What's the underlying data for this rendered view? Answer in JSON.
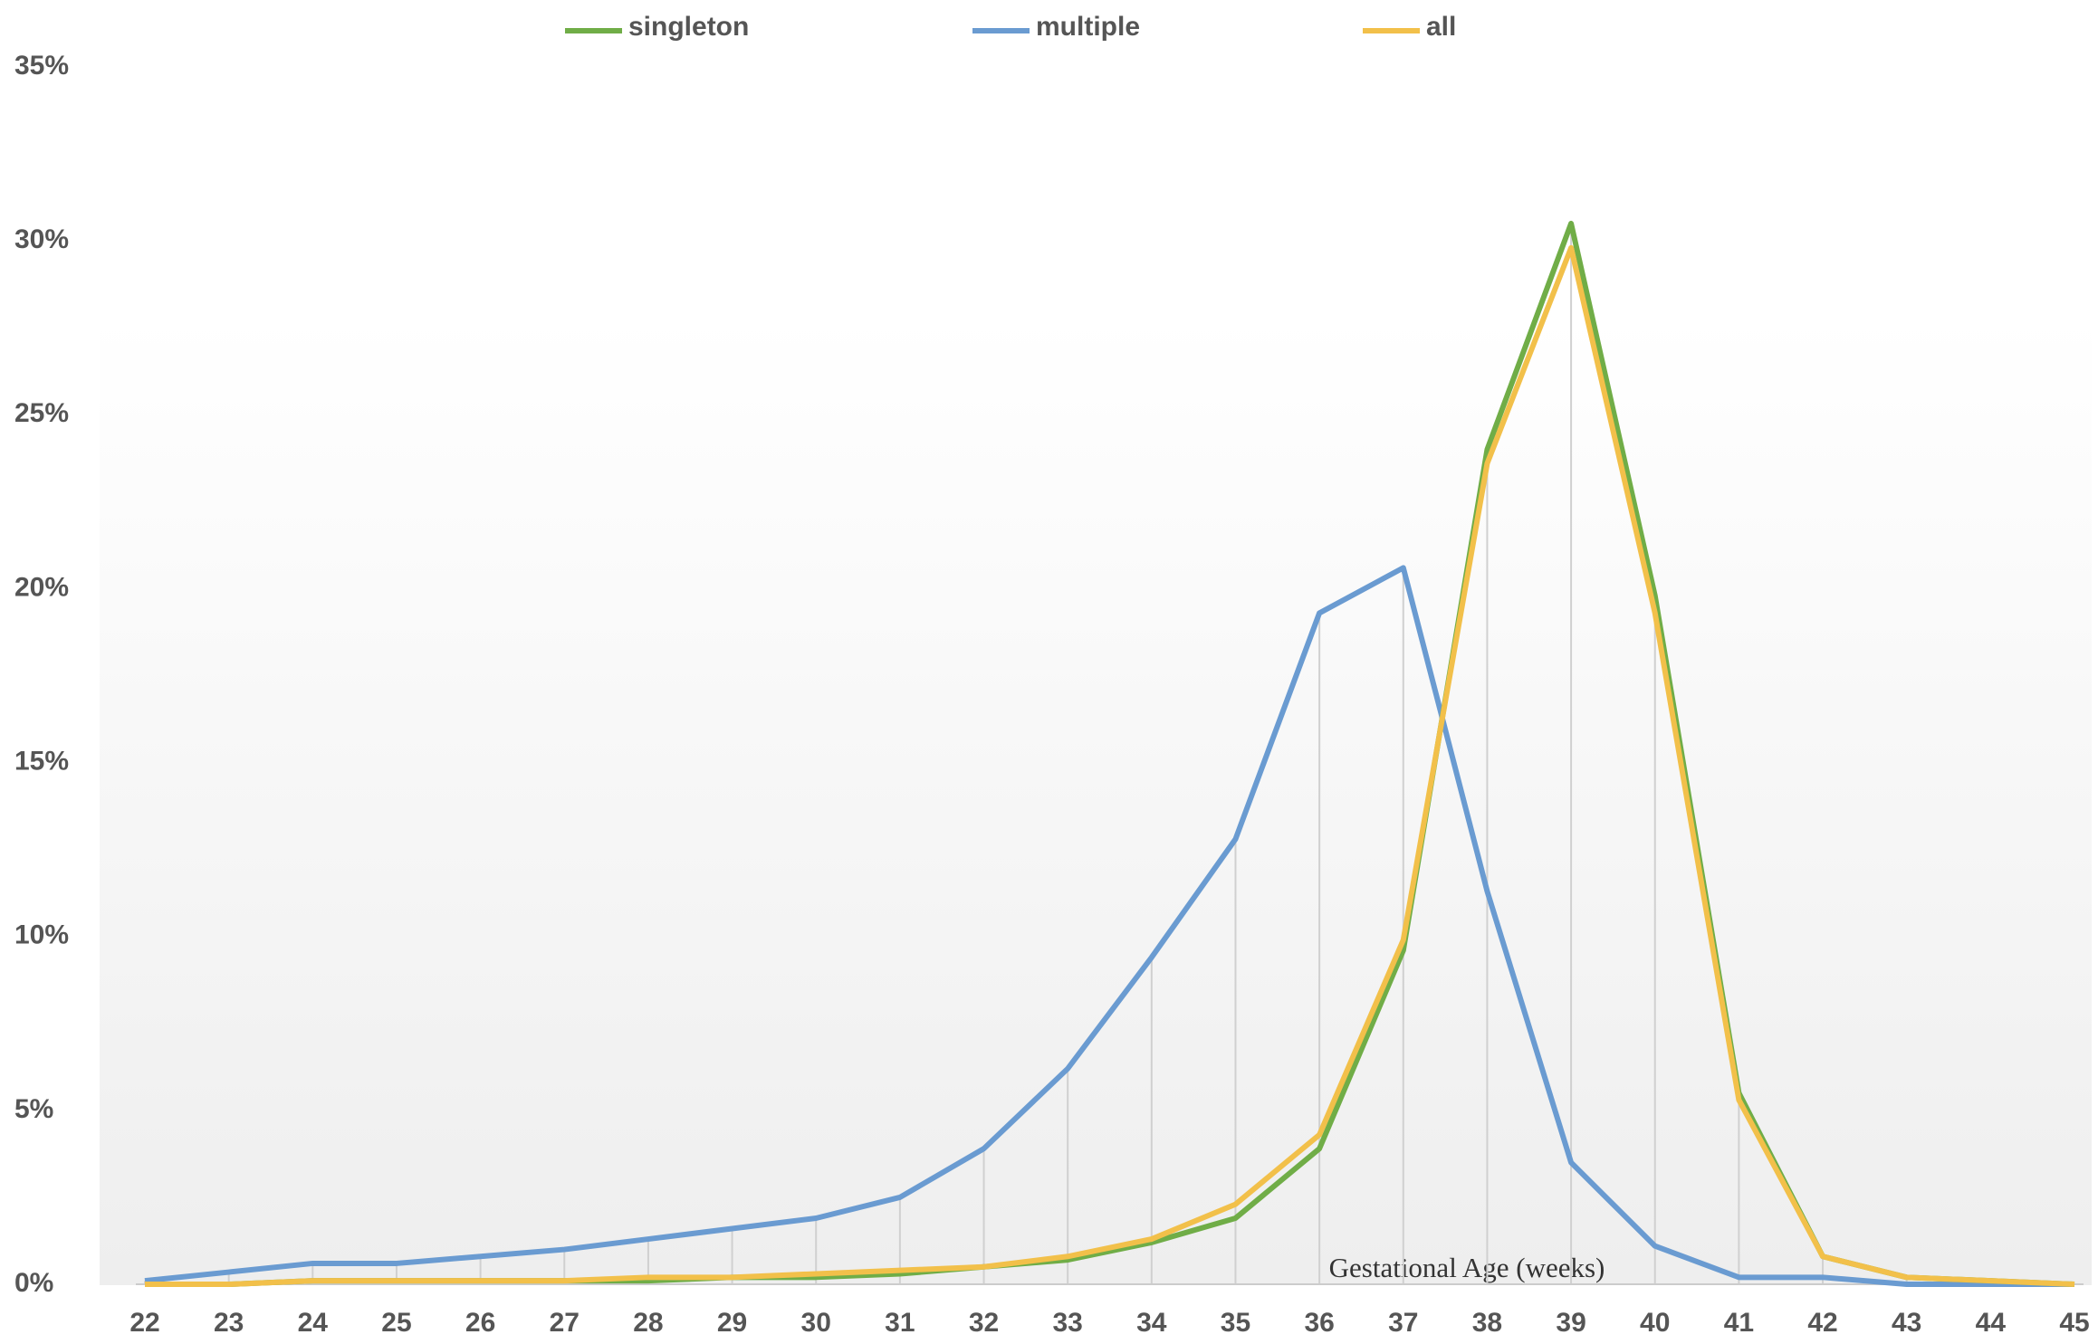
{
  "chart_data": {
    "type": "line",
    "annotation": "Gestational Age (weeks)",
    "x": [
      22,
      23,
      24,
      25,
      26,
      27,
      28,
      29,
      30,
      31,
      32,
      33,
      34,
      35,
      36,
      37,
      38,
      39,
      40,
      41,
      42,
      43,
      44,
      45
    ],
    "xlim": [
      22,
      45
    ],
    "xticks": [
      22,
      23,
      24,
      25,
      26,
      27,
      28,
      29,
      30,
      31,
      32,
      33,
      34,
      35,
      36,
      37,
      38,
      39,
      40,
      41,
      42,
      43,
      44,
      45
    ],
    "ylim": [
      0,
      35
    ],
    "yticks": [
      {
        "value": 0,
        "label": "0%"
      },
      {
        "value": 5,
        "label": "5%"
      },
      {
        "value": 10,
        "label": "10%"
      },
      {
        "value": 15,
        "label": "15%"
      },
      {
        "value": 20,
        "label": "20%"
      },
      {
        "value": 25,
        "label": "25%"
      },
      {
        "value": 30,
        "label": "30%"
      },
      {
        "value": 35,
        "label": "35%"
      }
    ],
    "legend": "top",
    "drop_lines": true,
    "series": [
      {
        "name": "singleton",
        "color": "#70ad47",
        "values": [
          0,
          0,
          0.1,
          0.1,
          0.1,
          0.1,
          0.1,
          0.2,
          0.2,
          0.3,
          0.5,
          0.7,
          1.2,
          1.9,
          3.9,
          9.6,
          24,
          30.5,
          19.8,
          5.5,
          0.8,
          0.2,
          0.1,
          0
        ]
      },
      {
        "name": "multiple",
        "color": "#6a9bd1",
        "values": [
          0.1,
          0.35,
          0.6,
          0.6,
          0.8,
          1.0,
          1.3,
          1.6,
          1.9,
          2.5,
          3.9,
          6.2,
          9.4,
          12.8,
          19.3,
          20.6,
          11.3,
          3.5,
          1.1,
          0.2,
          0.2,
          0,
          0,
          0
        ]
      },
      {
        "name": "all",
        "color": "#f2c04a",
        "values": [
          0,
          0,
          0.1,
          0.1,
          0.1,
          0.1,
          0.2,
          0.2,
          0.3,
          0.4,
          0.5,
          0.8,
          1.3,
          2.3,
          4.3,
          9.9,
          23.6,
          29.8,
          19.3,
          5.3,
          0.8,
          0.2,
          0.1,
          0
        ]
      }
    ]
  }
}
